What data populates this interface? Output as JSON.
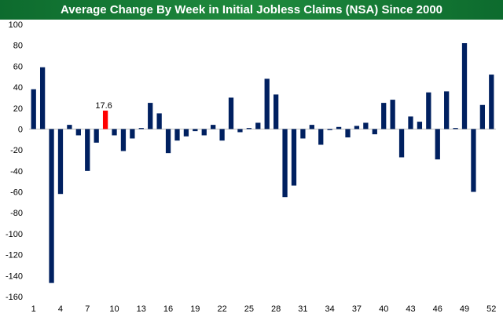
{
  "chart_data": {
    "type": "bar",
    "title": "Average Change By Week in Initial Jobless Claims (NSA) Since 2000",
    "xlabel": "",
    "ylabel": "",
    "ylim": [
      -160,
      100
    ],
    "y_ticks": [
      100,
      80,
      60,
      40,
      20,
      0,
      -20,
      -40,
      -60,
      -80,
      -100,
      -120,
      -140,
      -160
    ],
    "x_tick_labels": [
      "1",
      "4",
      "7",
      "10",
      "13",
      "16",
      "19",
      "22",
      "25",
      "28",
      "31",
      "34",
      "37",
      "40",
      "43",
      "46",
      "49",
      "52"
    ],
    "categories": [
      1,
      2,
      3,
      4,
      5,
      6,
      7,
      8,
      9,
      10,
      11,
      12,
      13,
      14,
      15,
      16,
      17,
      18,
      19,
      20,
      21,
      22,
      23,
      24,
      25,
      26,
      27,
      28,
      29,
      30,
      31,
      32,
      33,
      34,
      35,
      36,
      37,
      38,
      39,
      40,
      41,
      42,
      43,
      44,
      45,
      46,
      47,
      48,
      49,
      50,
      51,
      52
    ],
    "values": [
      38,
      59,
      -147,
      -62,
      4,
      -6,
      -40,
      -13,
      17.6,
      -6,
      -21,
      -9,
      1,
      25,
      15,
      -23,
      -11,
      -7,
      -2,
      -6,
      4,
      -11,
      30,
      -3,
      1,
      6,
      48,
      33,
      -65,
      -54,
      -9,
      4,
      -15,
      -1,
      2,
      -8,
      3,
      6,
      -5,
      25,
      28,
      -27,
      12,
      7,
      35,
      -29,
      36,
      1,
      82,
      -60,
      23,
      52
    ],
    "highlight": {
      "index": 8,
      "label": "17.6",
      "color": "#ff0000"
    },
    "bar_color": "#002060",
    "grid": false,
    "legend": "none"
  },
  "colors": {
    "title_gradient_start": "#0d6b2e",
    "title_gradient_mid": "#1f8a3d",
    "title_gradient_end": "#0d6b2e",
    "title_text": "#ffffff",
    "axis_line": "#bfbfbf"
  }
}
